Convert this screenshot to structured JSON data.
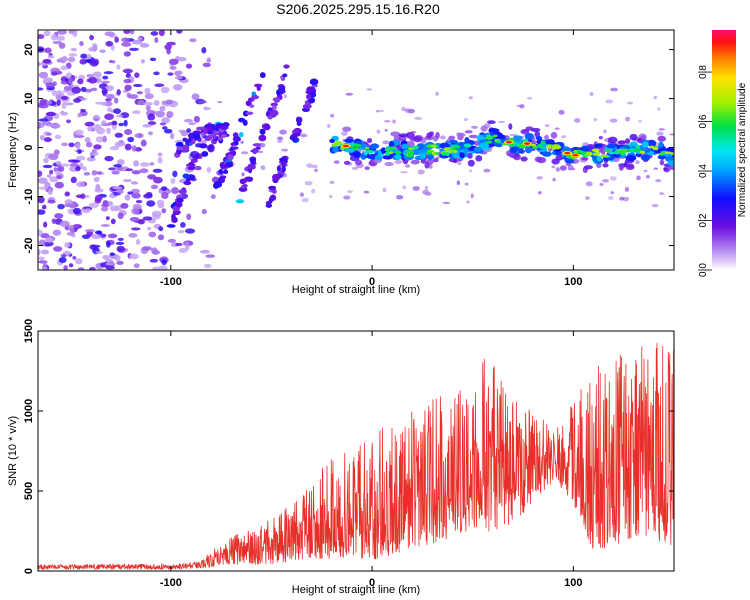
{
  "figure": {
    "title": "S206.2025.295.15.16.R20"
  },
  "chart_data": [
    {
      "type": "heatmap",
      "id": "spectrogram",
      "xlabel": "Height of straight line (km)",
      "ylabel": "Frequency (Hz)",
      "xlim": [
        -166,
        150
      ],
      "ylim": [
        -25,
        24
      ],
      "x_ticks": [
        -100,
        0,
        100
      ],
      "x_tick_labels": [
        "-100",
        "0",
        "100"
      ],
      "y_ticks": [
        -20,
        -10,
        0,
        10,
        20
      ],
      "y_tick_labels": [
        "-20",
        "-10",
        "0",
        "10",
        "20"
      ],
      "ridge": {
        "x": [
          -20,
          -10,
          0,
          10,
          20,
          30,
          40,
          50,
          60,
          70,
          80,
          90,
          100,
          110,
          120,
          130,
          140,
          150
        ],
        "y": [
          0.6,
          0.2,
          -1.2,
          -0.6,
          -0.8,
          -0.4,
          -0.6,
          0.2,
          2.2,
          0.8,
          0.8,
          0.0,
          -1.6,
          -1.2,
          -1.0,
          -0.8,
          -0.2,
          -1.8
        ]
      },
      "tracks": [
        {
          "x": [
            -100,
            -95,
            -88,
            -80,
            -72
          ],
          "y": [
            -16,
            -9,
            -3,
            1,
            4
          ]
        },
        {
          "x": [
            -78,
            -72,
            -66,
            -60,
            -54
          ],
          "y": [
            -8,
            -3,
            3,
            9,
            15
          ]
        },
        {
          "x": [
            -66,
            -60,
            -54,
            -48,
            -42
          ],
          "y": [
            -10,
            -4,
            3,
            9,
            16
          ]
        },
        {
          "x": [
            -52,
            -46,
            -40,
            -34,
            -28
          ],
          "y": [
            -12,
            -5,
            1,
            7,
            13
          ]
        },
        {
          "x": [
            -96,
            -90,
            -84,
            -78,
            -72
          ],
          "y": [
            0,
            1,
            3,
            3,
            4
          ]
        }
      ],
      "colorbar": {
        "label": "Normalized spectral amplitude",
        "range": [
          0.0,
          0.97
        ],
        "ticks": [
          0.0,
          0.2,
          0.4,
          0.6,
          0.8
        ],
        "tick_labels": [
          "0.0",
          "0.2",
          "0.4",
          "0.6",
          "0.8"
        ]
      }
    },
    {
      "type": "line",
      "id": "snr",
      "xlabel": "Height of straight line (km)",
      "ylabel": "SNR (10 * v/v)",
      "xlim": [
        -166,
        150
      ],
      "ylim": [
        0,
        1500
      ],
      "x_ticks": [
        -100,
        0,
        100
      ],
      "x_tick_labels": [
        "-100",
        "0",
        "100"
      ],
      "y_ticks": [
        0,
        500,
        1000,
        1500
      ],
      "y_tick_labels": [
        "0",
        "500",
        "1000",
        "1500"
      ],
      "color": "#e8302a",
      "envelope": {
        "x": [
          -166,
          -100,
          -85,
          -80,
          -60,
          -50,
          -40,
          -30,
          -20,
          -10,
          0,
          20,
          40,
          50,
          60,
          70,
          80,
          90,
          100,
          110,
          120,
          130,
          140,
          150
        ],
        "upper": [
          40,
          45,
          60,
          140,
          280,
          330,
          420,
          560,
          720,
          760,
          860,
          1000,
          1150,
          1300,
          1350,
          1100,
          1000,
          900,
          1050,
          1300,
          1350,
          1400,
          1450,
          1450
        ],
        "lower": [
          10,
          10,
          15,
          25,
          40,
          40,
          60,
          80,
          60,
          100,
          60,
          140,
          200,
          260,
          240,
          300,
          420,
          560,
          420,
          120,
          150,
          200,
          200,
          150
        ]
      }
    }
  ]
}
